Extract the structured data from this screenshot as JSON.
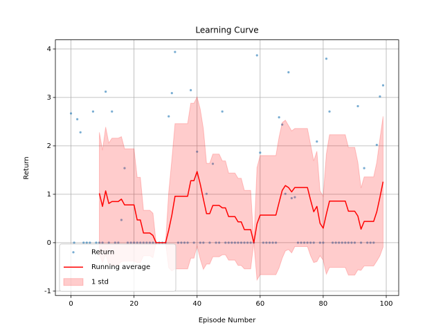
{
  "chart_data": {
    "type": "line",
    "title": "Learning Curve",
    "x_label": "Episode Number",
    "y_label": "Return",
    "x": [
      0,
      1,
      2,
      3,
      4,
      5,
      6,
      7,
      8,
      9,
      10,
      11,
      12,
      13,
      14,
      15,
      16,
      17,
      18,
      19,
      20,
      21,
      22,
      23,
      24,
      25,
      26,
      27,
      28,
      29,
      30,
      31,
      32,
      33,
      34,
      35,
      36,
      37,
      38,
      39,
      40,
      41,
      42,
      43,
      44,
      45,
      46,
      47,
      48,
      49,
      50,
      51,
      52,
      53,
      54,
      55,
      56,
      57,
      58,
      59,
      60,
      61,
      62,
      63,
      64,
      65,
      66,
      67,
      68,
      69,
      70,
      71,
      72,
      73,
      74,
      75,
      76,
      77,
      78,
      79,
      80,
      81,
      82,
      83,
      84,
      85,
      86,
      87,
      88,
      89,
      90,
      91,
      92,
      93,
      94,
      95,
      96,
      97,
      98,
      99
    ],
    "series": [
      {
        "name": "Return",
        "type": "scatter",
        "color": "#1f77b4",
        "values": [
          2.67,
          0,
          2.55,
          2.28,
          0,
          0,
          0,
          2.71,
          0,
          0,
          0,
          3.12,
          0,
          2.71,
          0,
          0,
          0.47,
          1.54,
          0,
          0,
          0,
          0,
          0,
          0,
          0,
          0,
          0,
          0,
          0,
          0,
          0,
          2.61,
          3.09,
          3.94,
          0,
          0,
          0,
          0,
          3.15,
          0,
          1.88,
          0,
          0,
          1.01,
          0,
          1.63,
          0,
          0,
          2.71,
          0,
          0,
          0,
          0,
          0,
          0,
          0,
          0,
          0,
          0,
          3.87,
          1.86,
          0,
          0,
          0,
          0,
          0,
          2.59,
          2.44,
          1.01,
          3.52,
          0.92,
          0.94,
          0,
          0,
          0,
          0,
          0,
          0,
          2.09,
          0,
          0,
          3.8,
          2.71,
          0,
          0,
          0,
          0,
          0,
          0,
          0,
          0,
          2.82,
          0,
          1.54,
          0,
          0,
          0,
          2.02,
          3.02,
          3.25
        ]
      },
      {
        "name": "Running average",
        "type": "line",
        "color": "#ff0000",
        "values": [
          null,
          null,
          null,
          null,
          null,
          null,
          null,
          null,
          null,
          1.02,
          0.75,
          1.07,
          0.81,
          0.85,
          0.85,
          0.85,
          0.9,
          0.78,
          0.78,
          0.78,
          0.78,
          0.47,
          0.47,
          0.2,
          0.2,
          0.2,
          0.15,
          0,
          0,
          0,
          0,
          0.26,
          0.57,
          0.96,
          0.96,
          0.96,
          0.96,
          0.96,
          1.28,
          1.28,
          1.47,
          1.21,
          0.9,
          0.6,
          0.6,
          0.77,
          0.77,
          0.77,
          0.72,
          0.72,
          0.54,
          0.54,
          0.54,
          0.43,
          0.43,
          0.27,
          0.27,
          0.27,
          0,
          0.39,
          0.57,
          0.57,
          0.57,
          0.57,
          0.57,
          0.57,
          0.83,
          1.08,
          1.18,
          1.14,
          1.05,
          1.14,
          1.14,
          1.14,
          1.14,
          1.14,
          0.88,
          0.64,
          0.75,
          0.4,
          0.3,
          0.59,
          0.86,
          0.86,
          0.86,
          0.86,
          0.86,
          0.86,
          0.65,
          0.65,
          0.65,
          0.55,
          0.28,
          0.44,
          0.44,
          0.44,
          0.44,
          0.64,
          0.94,
          1.26
        ]
      },
      {
        "name": "1 std",
        "type": "band",
        "color": "#ff0000",
        "lower": [
          null,
          null,
          null,
          null,
          null,
          null,
          null,
          null,
          null,
          -0.24,
          -0.41,
          -0.25,
          -0.44,
          -0.46,
          -0.46,
          -0.46,
          -0.39,
          -0.38,
          -0.38,
          -0.38,
          -0.38,
          -0.41,
          -0.41,
          -0.27,
          -0.27,
          -0.27,
          -0.31,
          0,
          0,
          0,
          0,
          -0.52,
          -0.58,
          -0.54,
          -0.54,
          -0.54,
          -0.54,
          -0.54,
          -0.32,
          -0.32,
          -0.07,
          -0.34,
          -0.55,
          -0.44,
          -0.44,
          -0.29,
          -0.29,
          -0.29,
          -0.25,
          -0.25,
          -0.36,
          -0.36,
          -0.36,
          -0.47,
          -0.47,
          -0.54,
          -0.54,
          -0.54,
          0,
          -0.77,
          -0.66,
          -0.66,
          -0.66,
          -0.66,
          -0.66,
          -0.66,
          -0.52,
          -0.32,
          -0.17,
          -0.14,
          -0.21,
          -0.08,
          -0.08,
          -0.08,
          -0.08,
          -0.08,
          -0.27,
          -0.41,
          -0.39,
          -0.27,
          -0.36,
          -0.65,
          -0.51,
          -0.51,
          -0.51,
          -0.51,
          -0.51,
          -0.51,
          -0.67,
          -0.67,
          -0.67,
          -0.56,
          -0.57,
          -0.48,
          -0.48,
          -0.48,
          -0.48,
          -0.38,
          -0.27,
          -0.09
        ],
        "upper": [
          null,
          null,
          null,
          null,
          null,
          null,
          null,
          null,
          null,
          2.28,
          1.91,
          2.39,
          2.06,
          2.16,
          2.16,
          2.16,
          2.19,
          1.94,
          1.94,
          1.94,
          1.94,
          1.35,
          1.35,
          0.67,
          0.67,
          0.67,
          0.61,
          0,
          0,
          0,
          0,
          1.04,
          1.72,
          2.46,
          2.46,
          2.46,
          2.46,
          2.46,
          2.88,
          2.88,
          3.01,
          2.76,
          2.35,
          1.64,
          1.64,
          1.83,
          1.83,
          1.83,
          1.69,
          1.69,
          1.44,
          1.44,
          1.44,
          1.33,
          1.33,
          1.08,
          1.08,
          1.08,
          0,
          1.55,
          1.8,
          1.8,
          1.8,
          1.8,
          1.8,
          1.8,
          2.18,
          2.48,
          2.53,
          2.42,
          2.31,
          2.36,
          2.36,
          2.36,
          2.36,
          2.36,
          2.03,
          1.69,
          1.89,
          1.07,
          0.96,
          1.83,
          2.23,
          2.23,
          2.23,
          2.23,
          2.23,
          2.23,
          1.97,
          1.97,
          1.97,
          1.66,
          1.13,
          1.36,
          1.36,
          1.36,
          1.36,
          1.66,
          2.15,
          2.61
        ]
      }
    ],
    "xlim": [
      -4.95,
      103.95
    ],
    "xticks": [
      0,
      20,
      40,
      60,
      80,
      100
    ],
    "ylim": [
      -1.09,
      4.19
    ],
    "yticks": [
      -1,
      0,
      1,
      2,
      3,
      4
    ],
    "grid": true,
    "legend": "lower left"
  }
}
